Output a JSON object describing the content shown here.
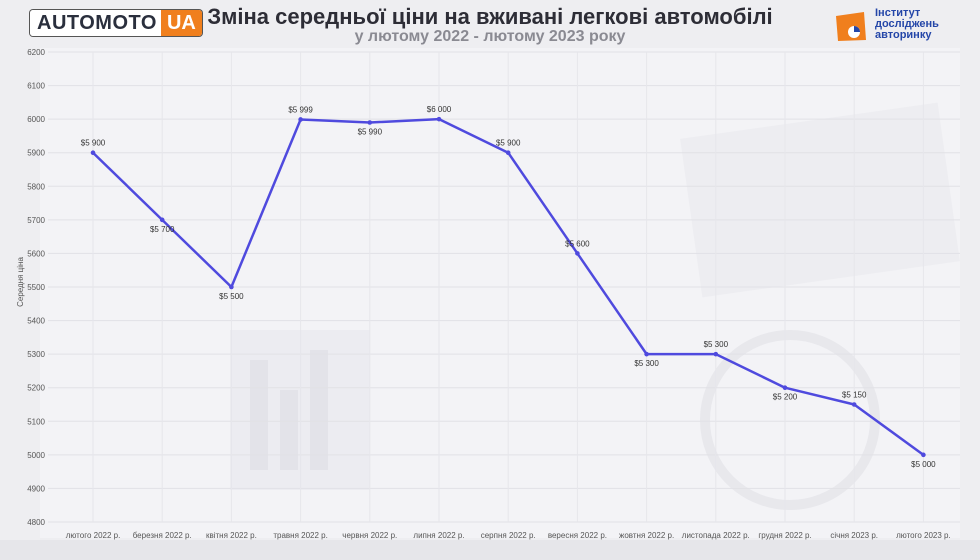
{
  "header": {
    "title": "Зміна середньої ціни на вживані легкові автомобілі",
    "subtitle": "у лютому 2022 - лютому 2023 року"
  },
  "logo_left": {
    "main": "AUTOMOTO",
    "accent": "UA"
  },
  "logo_right": {
    "text": "Інститут\nдосліджень\nавторинку"
  },
  "colors": {
    "line": "#4f4ade",
    "brand_orange": "#f07f1d",
    "brand_blue": "#2446a8"
  },
  "chart_data": {
    "type": "line",
    "title": "Зміна середньої ціни на вживані легкові автомобілі",
    "subtitle": "у лютому 2022 - лютому 2023 року",
    "xlabel": "",
    "ylabel": "Середня ціна",
    "ylim": [
      4800,
      6200
    ],
    "yticks": [
      4800,
      4900,
      5000,
      5100,
      5200,
      5300,
      5400,
      5500,
      5600,
      5700,
      5800,
      5900,
      6000,
      6100,
      6200
    ],
    "grid": true,
    "categories": [
      "лютого 2022 р.",
      "березня 2022 р.",
      "квітня 2022 р.",
      "травня 2022 р.",
      "червня 2022 р.",
      "липня 2022 р.",
      "серпня 2022 р.",
      "вересня 2022 р.",
      "жовтня 2022 р.",
      "листопада 2022 р.",
      "грудня 2022 р.",
      "січня 2023 р.",
      "лютого 2023 р."
    ],
    "series": [
      {
        "values": [
          5900,
          5700,
          5500,
          5999,
          5990,
          6000,
          5900,
          5600,
          5300,
          5300,
          5200,
          5150,
          5000
        ],
        "labels": [
          "$5 900",
          "$5 700",
          "$5 500",
          "$5 999",
          "$5 990",
          "$6 000",
          "$5 900",
          "$5 600",
          "$5 300",
          "$5 300",
          "$5 200",
          "$5 150",
          "$5 000"
        ],
        "label_positions": [
          "above",
          "below",
          "below",
          "above",
          "below",
          "above",
          "above",
          "above",
          "below",
          "above",
          "below",
          "above",
          "below"
        ]
      }
    ]
  }
}
